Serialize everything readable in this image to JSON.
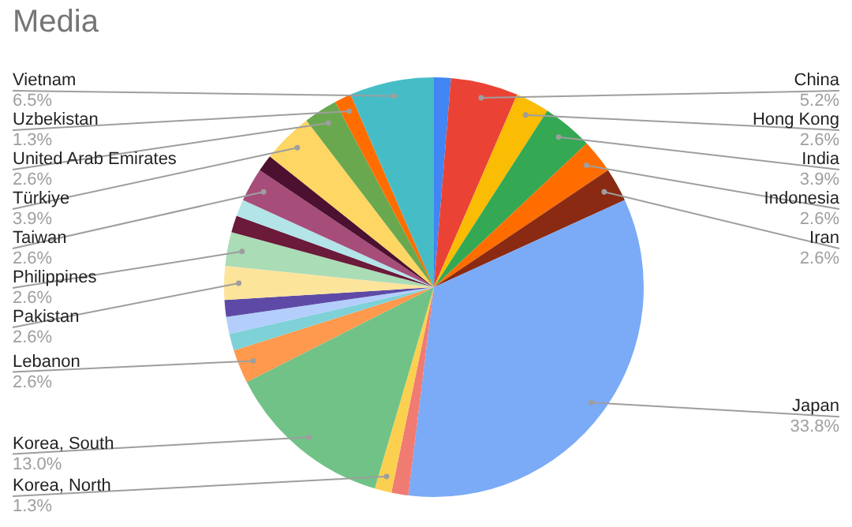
{
  "chart_data": {
    "type": "pie",
    "title": "Media",
    "categories": [
      null,
      "China",
      "Hong Kong",
      "India",
      "Indonesia",
      "Iran",
      "Japan",
      null,
      "Korea, North",
      "Korea, South",
      "Lebanon",
      null,
      null,
      null,
      "Pakistan",
      "Philippines",
      null,
      null,
      "Taiwan",
      null,
      "Türkiye",
      "United Arab Emirates",
      "Uzbekistan",
      "Vietnam"
    ],
    "values": [
      1.3,
      5.2,
      2.6,
      3.9,
      2.6,
      2.6,
      33.8,
      1.3,
      1.3,
      13.0,
      2.6,
      1.3,
      1.3,
      1.3,
      2.6,
      2.6,
      1.3,
      1.3,
      2.6,
      1.3,
      3.9,
      2.6,
      1.3,
      6.5
    ],
    "value_labels": [
      null,
      "5.2%",
      "2.6%",
      "3.9%",
      "2.6%",
      "2.6%",
      "33.8%",
      null,
      "1.3%",
      "13.0%",
      "2.6%",
      null,
      null,
      null,
      "2.6%",
      "2.6%",
      null,
      null,
      "2.6%",
      null,
      "3.9%",
      "2.6%",
      "1.3%",
      "6.5%"
    ],
    "colors": [
      "#4285f4",
      "#ea4335",
      "#fbbc04",
      "#34a853",
      "#ff6d01",
      "#8a2a12",
      "#7baaf7",
      "#f07b72",
      "#fcd04f",
      "#71c287",
      "#ff994d",
      "#7ed1d7",
      "#b3cefb",
      "#5e4aa6",
      "#fde49b",
      "#aadcb6",
      "#6b1a3a",
      "#b2e4e8",
      "#a64d79",
      "#4c1130",
      "#fdd663",
      "#6aa84f",
      "#ff6d01",
      "#46bdc6"
    ]
  }
}
